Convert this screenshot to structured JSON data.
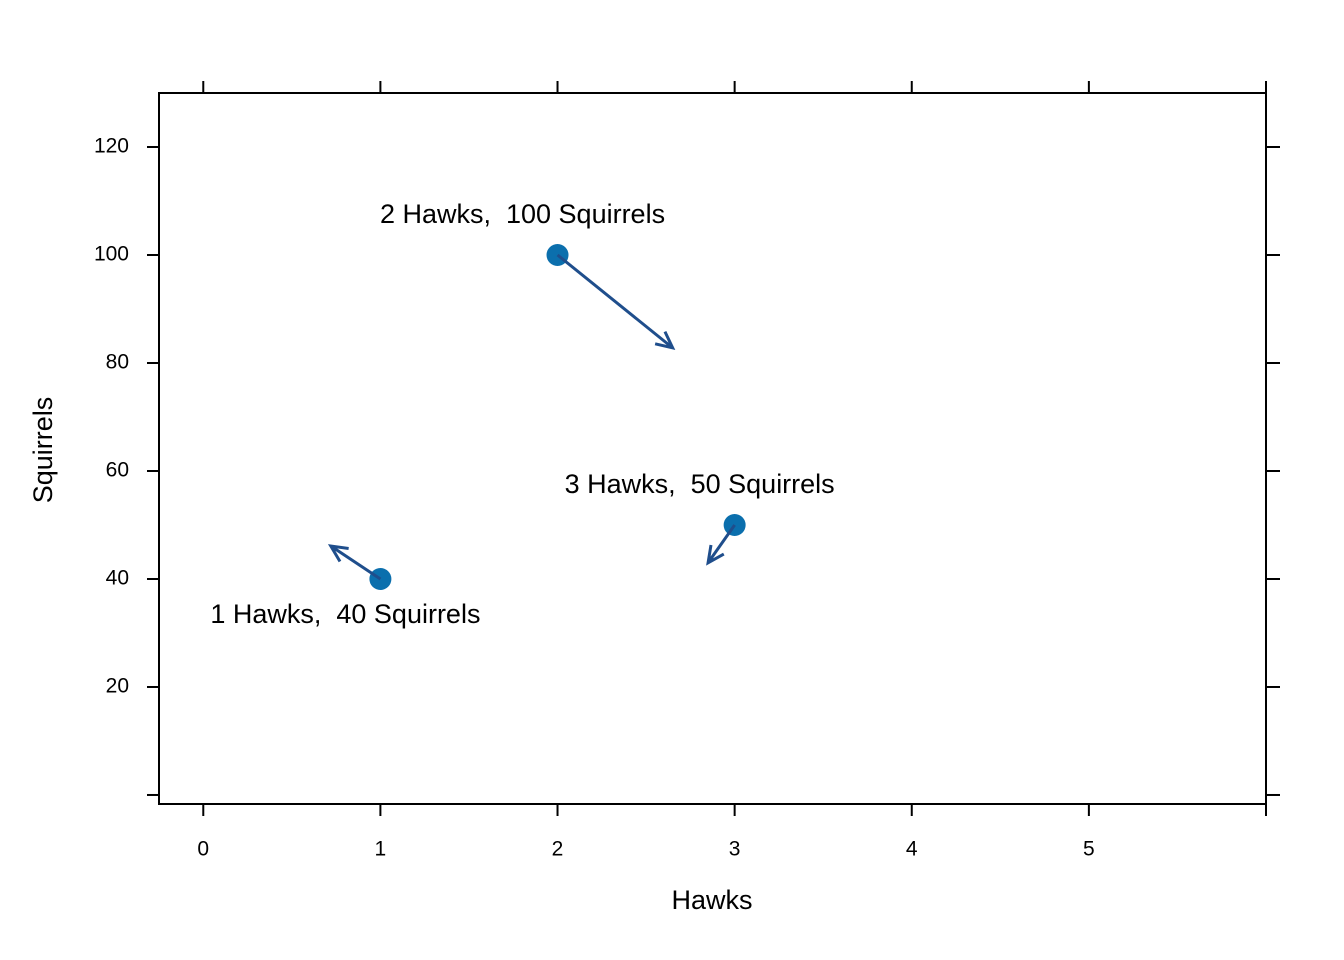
{
  "chart_data": {
    "type": "scatter",
    "x_label": "Hawks",
    "y_label": "Squirrels",
    "x": [
      1,
      2,
      3
    ],
    "values": [
      40,
      100,
      50
    ],
    "point_labels": [
      "1 Hawks,  40 Squirrels",
      "2 Hawks,  100 Squirrels",
      "3 Hawks,  50 Squirrels"
    ],
    "arrow_x_end": [
      0.72,
      2.65,
      2.85
    ],
    "arrow_y_end": [
      46.1,
      82.8,
      43
    ],
    "color": "#0b6fad",
    "arrow_color": "#1f4e8c",
    "xlim": [
      -0.25,
      6.0
    ],
    "ylim": [
      -1.67,
      130
    ],
    "xticks": [
      0,
      1,
      2,
      3,
      4,
      5,
      {
        "value": 6,
        "label": null
      }
    ],
    "yticks": [
      {
        "value": 0,
        "label": null
      },
      20,
      40,
      60,
      80,
      100,
      120
    ],
    "grid": false
  }
}
